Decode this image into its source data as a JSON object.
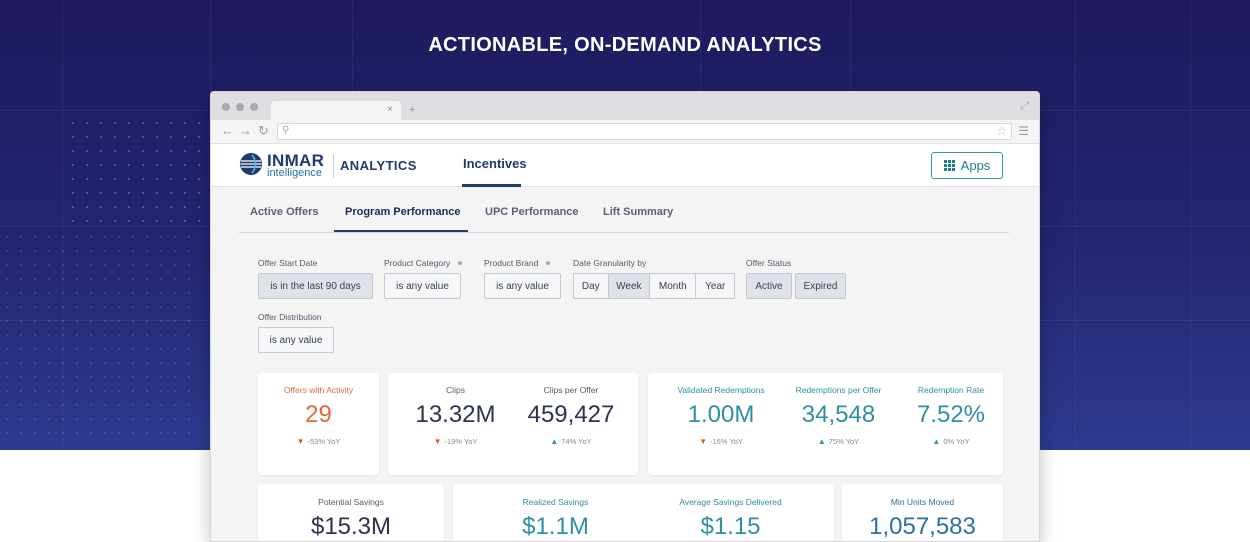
{
  "hero": {
    "title": "ACTIONABLE, ON-DEMAND ANALYTICS"
  },
  "browser": {
    "tab_close": "×",
    "tab_new": "+",
    "icons": [
      "back-arrow-icon",
      "forward-arrow-icon",
      "reload-icon",
      "search-icon",
      "star-icon",
      "menu-icon",
      "expand-icon"
    ]
  },
  "header": {
    "logo_name": "INMAR",
    "logo_sub": "intelligence",
    "product": "ANALYTICS",
    "nav_item": "Incentives",
    "apps_label": "Apps"
  },
  "subtabs": [
    {
      "label": "Active Offers",
      "active": false
    },
    {
      "label": "Program Performance",
      "active": true
    },
    {
      "label": "UPC Performance",
      "active": false
    },
    {
      "label": "Lift Summary",
      "active": false
    }
  ],
  "filters": {
    "offer_start_date": {
      "label": "Offer Start Date",
      "value": "is in the last 90 days"
    },
    "product_category": {
      "label": "Product Category",
      "value": "is any value"
    },
    "product_brand": {
      "label": "Product Brand",
      "value": "is any value"
    },
    "date_granularity": {
      "label": "Date Granularity by",
      "options": [
        "Day",
        "Week",
        "Month",
        "Year"
      ],
      "selected": "Week"
    },
    "offer_status": {
      "label": "Offer Status",
      "options": [
        "Active",
        "Expired"
      ],
      "selected": [
        "Active",
        "Expired"
      ]
    },
    "offer_distribution": {
      "label": "Offer Distribution",
      "value": "is any value"
    }
  },
  "kpis_row1": {
    "offers_with_activity": {
      "label": "Offers with Activity",
      "value": "29",
      "yoy": "-53% YoY",
      "trend": "down"
    },
    "clips": {
      "label": "Clips",
      "value": "13.32M",
      "yoy": "-19% YoY",
      "trend": "down"
    },
    "clips_per_offer": {
      "label": "Clips per Offer",
      "value": "459,427",
      "yoy": "74% YoY",
      "trend": "up"
    },
    "validated_redemptions": {
      "label": "Validated Redemptions",
      "value": "1.00M",
      "yoy": "-16% YoY",
      "trend": "down"
    },
    "redemptions_per_offer": {
      "label": "Redemptions per Offer",
      "value": "34,548",
      "yoy": "75% YoY",
      "trend": "up"
    },
    "redemption_rate": {
      "label": "Redemption Rate",
      "value": "7.52%",
      "yoy": "0% YoY",
      "trend": "up"
    }
  },
  "kpis_row2": {
    "potential_savings": {
      "label": "Potential Savings",
      "value": "$15.3M"
    },
    "realized_savings": {
      "label": "Realized Savings",
      "value": "$1.1M"
    },
    "average_savings_delivered": {
      "label": "Average Savings Delivered",
      "value": "$1.15"
    },
    "min_units_moved": {
      "label": "Min Units Moved",
      "value": "1,057,583"
    }
  },
  "colors": {
    "hero_bg": "#242573",
    "accent_navy": "#1f3a6e",
    "accent_teal": "#2e9d9b",
    "kpi_orange": "#e0683f",
    "trend_down": "#e0532c",
    "trend_up": "#2f9e62"
  }
}
